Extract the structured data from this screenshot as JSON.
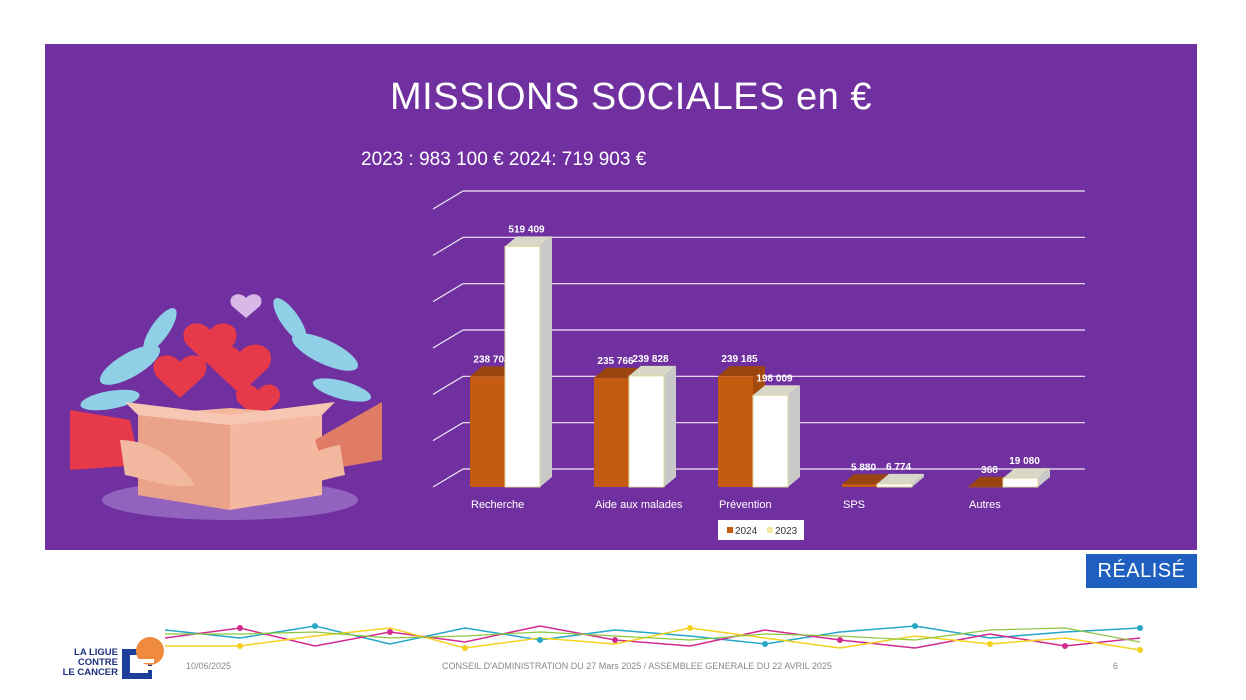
{
  "slide": {
    "title": "MISSIONS SOCIALES en €",
    "summary_2023": "2023 : 983 100 €",
    "summary_2024": "2024: 719 903 €",
    "badge": "RÉALISÉ"
  },
  "footer": {
    "date": "10/06/2025",
    "text": "CONSEIL D'ADMINISTRATION DU 27 Mars 2025 / ASSEMBLEE GENERALE DU 22 AVRIL 2025",
    "page": "6",
    "logo_lines": [
      "LA LIGUE",
      "CONTRE",
      "LE CANCER"
    ]
  },
  "colors": {
    "panel": "#7030a0",
    "series_2024": "#c55a11",
    "series_2023": "#ffffff",
    "badge": "#1f5fbf"
  },
  "chart_data": {
    "type": "bar",
    "categories": [
      "Recherche",
      "Aide aux malades",
      "Prévention",
      "SPS",
      "Autres"
    ],
    "series": [
      {
        "name": "2024",
        "values": [
          238704,
          235766,
          239185,
          5880,
          368
        ],
        "labels": [
          "238 704",
          "235 766",
          "239 185",
          "5 880",
          "368"
        ]
      },
      {
        "name": "2023",
        "values": [
          519409,
          239828,
          198009,
          6774,
          19080
        ],
        "labels": [
          "519 409",
          "239 828",
          "198 009",
          "6 774",
          "19 080"
        ]
      }
    ],
    "ylim": [
      0,
      600000
    ],
    "grid": true,
    "style": "3d-clustered",
    "legend": "bottom"
  }
}
